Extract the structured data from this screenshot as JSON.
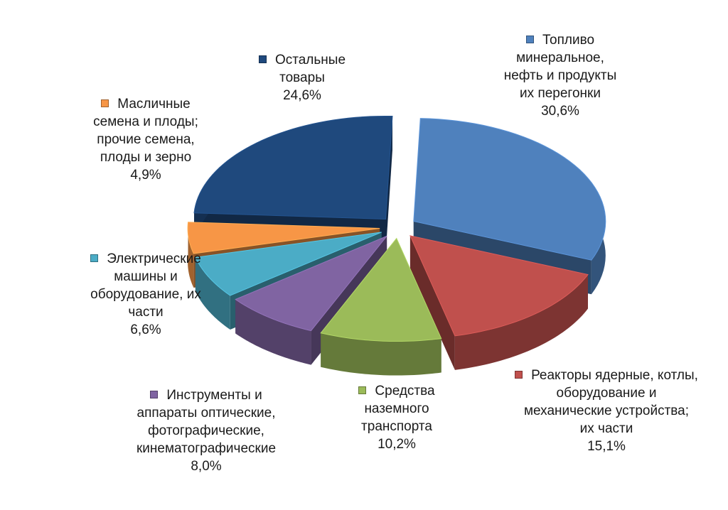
{
  "chart_data": {
    "type": "pie",
    "title": "",
    "value_format": "percent, comma decimal",
    "slices": [
      {
        "name": "Топливо\nминеральное,\nнефть и продукты\nих перегонки",
        "value": 30.6,
        "value_label": "30,6%",
        "color": "#4f81bd"
      },
      {
        "name": "Реакторы ядерные, котлы,\nоборудование и\nмеханические устройства;\nих части",
        "value": 15.1,
        "value_label": "15,1%",
        "color": "#c0504d"
      },
      {
        "name": "Средства\nназемного\nтранспорта",
        "value": 10.2,
        "value_label": "10,2%",
        "color": "#9bbb59"
      },
      {
        "name": "Инструменты и\nаппараты оптические,\nфотографические,\nкинематографические",
        "value": 8.0,
        "value_label": "8,0%",
        "color": "#8064a2"
      },
      {
        "name": "Электрические\nмашины и\nоборудование, их\nчасти",
        "value": 6.6,
        "value_label": "6,6%",
        "color": "#4bacc6"
      },
      {
        "name": "Масличные\nсемена и плоды;\nпрочие семена,\nплоды и зерно",
        "value": 4.9,
        "value_label": "4,9%",
        "color": "#f79646"
      },
      {
        "name": "Остальные\nтовары",
        "value": 24.6,
        "value_label": "24,6%",
        "color": "#1f497d"
      }
    ]
  }
}
